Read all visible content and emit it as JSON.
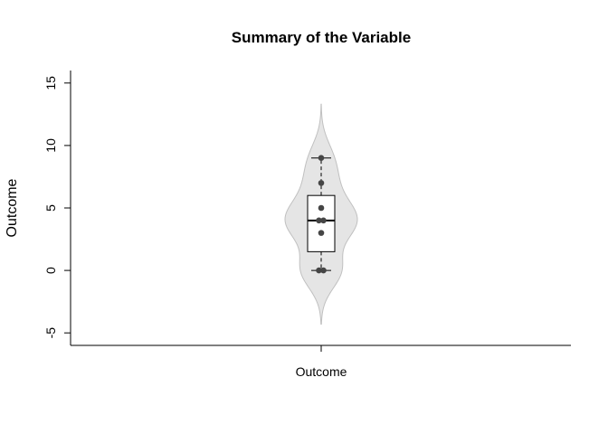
{
  "chart_data": {
    "type": "violin",
    "title": "Summary of the Variable",
    "xlabel": "",
    "ylabel": "Outcome",
    "categories": [
      "Outcome"
    ],
    "ylim": [
      -6,
      16
    ],
    "yticks": [
      "-5",
      "0",
      "5",
      "10",
      "15"
    ],
    "points": [
      0,
      0,
      3,
      4,
      4,
      5,
      7,
      9
    ],
    "box": {
      "min": 0,
      "q1": 1.5,
      "median": 4,
      "q3": 6,
      "max": 9
    },
    "violin_range": [
      -4.3,
      13.3
    ],
    "grid": false,
    "colors": {
      "violin_fill": "#e5e5e5",
      "violin_stroke": "#c0c0c0",
      "box_fill": "#ffffff",
      "point": "#454545"
    }
  }
}
